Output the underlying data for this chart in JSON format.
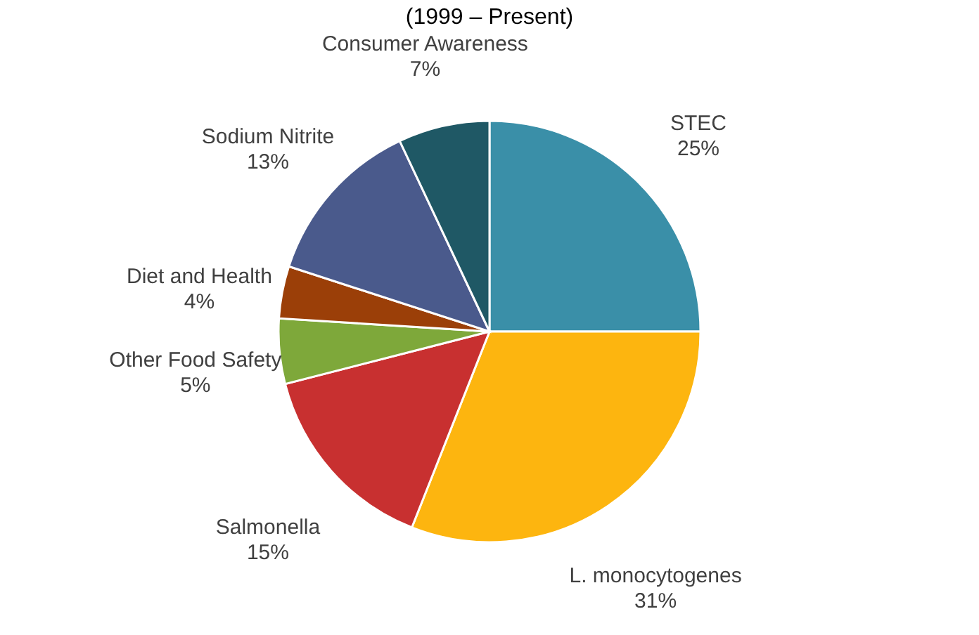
{
  "chart_data": {
    "type": "pie",
    "subtitle": "(1999 – Present)",
    "categories": [
      "STEC",
      "L. monocytogenes",
      "Salmonella",
      "Other Food Safety",
      "Diet and Health",
      "Sodium Nitrite",
      "Consumer Awareness"
    ],
    "values": [
      25,
      31,
      15,
      5,
      4,
      13,
      7
    ],
    "value_labels": [
      "25%",
      "31%",
      "15%",
      "5%",
      "4%",
      "13%",
      "7%"
    ],
    "colors": [
      "#3a8fa8",
      "#fdb50f",
      "#c83030",
      "#7ea83a",
      "#9b3f08",
      "#4a5a8c",
      "#1f5865"
    ],
    "legend": false
  }
}
